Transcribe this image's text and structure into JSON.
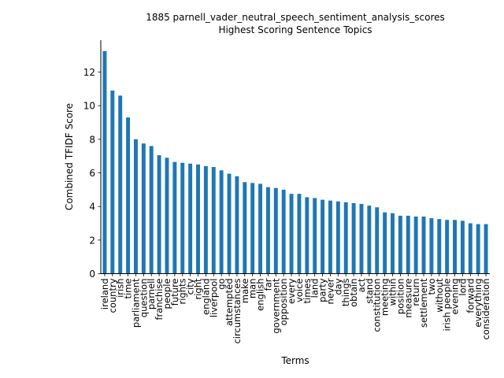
{
  "chart_data": {
    "type": "bar",
    "title_line1": "1885 parnell_vader_neutral_speech_sentiment_analysis_scores",
    "title_line2": "Highest Scoring Sentence Topics",
    "xlabel": "Terms",
    "ylabel": "Combined TFIDF Score",
    "ylim": [
      0,
      13.9
    ],
    "yticks": [
      0,
      2,
      4,
      6,
      8,
      10,
      12
    ],
    "bar_color": "#1f77b4",
    "grid": false,
    "categories": [
      "ireland",
      "country",
      "irish",
      "time",
      "parliament",
      "question",
      "parnell",
      "franchise",
      "people",
      "future",
      "rights",
      "city",
      "right",
      "england",
      "liverpool",
      "go",
      "attempted",
      "circumstances",
      "make",
      "man",
      "english",
      "far",
      "government",
      "opposition",
      "every",
      "voice",
      "times",
      "land",
      "party",
      "never",
      "day",
      "things",
      "obtain",
      "act",
      "stand",
      "constitution",
      "meeting",
      "within",
      "position",
      "measure",
      "return",
      "settlement",
      "two",
      "without",
      "irish people",
      "evening",
      "lord",
      "forward",
      "everything",
      "consideration"
    ],
    "values": [
      13.25,
      10.9,
      10.6,
      9.3,
      8.0,
      7.75,
      7.6,
      7.05,
      6.9,
      6.65,
      6.6,
      6.55,
      6.5,
      6.4,
      6.35,
      6.15,
      5.95,
      5.8,
      5.45,
      5.4,
      5.35,
      5.15,
      5.1,
      5.0,
      4.75,
      4.75,
      4.55,
      4.5,
      4.4,
      4.35,
      4.3,
      4.25,
      4.2,
      4.15,
      4.05,
      3.95,
      3.65,
      3.6,
      3.45,
      3.45,
      3.4,
      3.4,
      3.3,
      3.25,
      3.2,
      3.2,
      3.15,
      3.0,
      2.95,
      2.95
    ]
  }
}
